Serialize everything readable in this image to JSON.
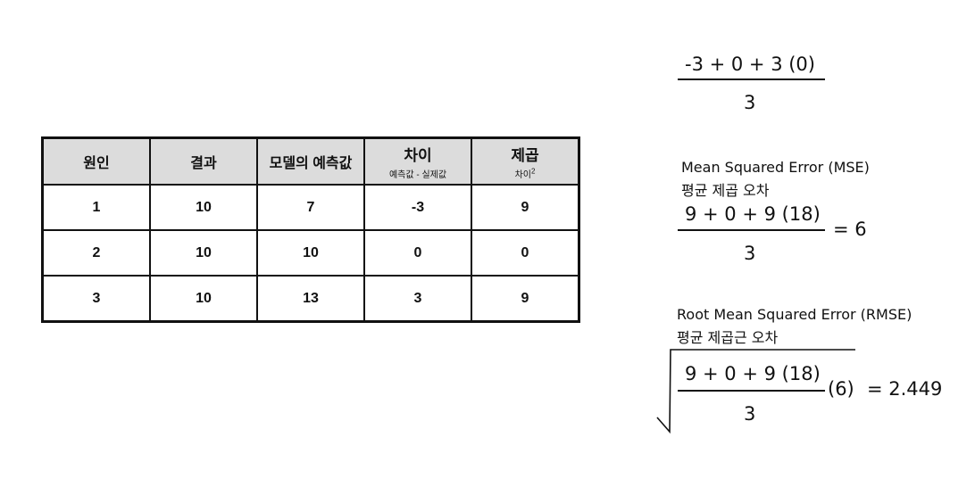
{
  "table": {
    "headers": [
      {
        "label": "원인",
        "sub": ""
      },
      {
        "label": "결과",
        "sub": ""
      },
      {
        "label": "모델의 예측값",
        "sub": ""
      },
      {
        "label": "차이",
        "sub": "예측값 - 실제값"
      },
      {
        "label": "제곱",
        "sub": "차이",
        "sub_sup": "2"
      }
    ],
    "rows": [
      [
        "1",
        "10",
        "7",
        "-3",
        "9"
      ],
      [
        "2",
        "10",
        "10",
        "0",
        "0"
      ],
      [
        "3",
        "10",
        "13",
        "3",
        "9"
      ]
    ]
  },
  "mean_error": {
    "numerator": "-3 + 0 + 3 (0)",
    "denominator": "3"
  },
  "mse": {
    "title_en": "Mean Squared Error (MSE)",
    "title_ko": "평균 제곱 오차",
    "numerator": "9 + 0 + 9 (18)",
    "denominator": "3",
    "result": "= 6"
  },
  "rmse": {
    "title_en": "Root Mean Squared Error (RMSE)",
    "title_ko": "평균 제곱근 오차",
    "numerator": "9 + 0 + 9 (18)",
    "denominator": "3",
    "inner": "(6)",
    "result": "= 2.449"
  }
}
